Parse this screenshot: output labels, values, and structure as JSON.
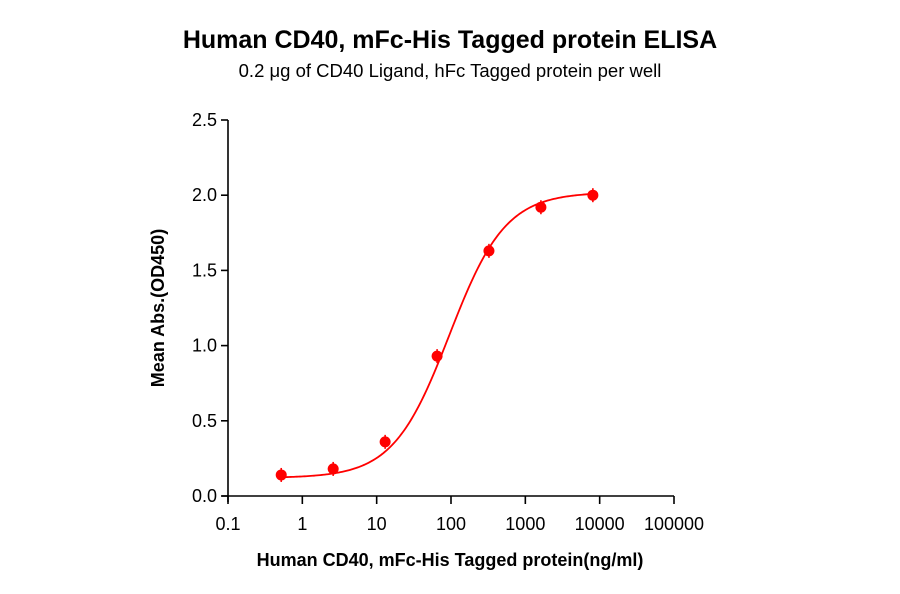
{
  "chart_data": {
    "type": "line",
    "title": "Human CD40, mFc-His Tagged protein ELISA",
    "subtitle": "0.2 μg of CD40 Ligand, hFc Tagged protein per well",
    "xlabel": "Human CD40, mFc-His Tagged protein(ng/ml)",
    "ylabel": "Mean Abs.(OD450)",
    "xscale": "log",
    "xlim": [
      0.1,
      100000
    ],
    "ylim": [
      0,
      2.5
    ],
    "xticks": [
      "0.1",
      "1",
      "10",
      "100",
      "1000",
      "10000",
      "100000"
    ],
    "yticks": [
      "0.0",
      "0.5",
      "1.0",
      "1.5",
      "2.0",
      "2.5"
    ],
    "grid": false,
    "legend": null,
    "series": [
      {
        "name": "Human CD40, mFc-His Tagged protein",
        "color": "#ff0000",
        "fit": "4PL sigmoid",
        "x": [
          0.52,
          2.6,
          13,
          65,
          324,
          1620,
          8100
        ],
        "values": [
          0.14,
          0.18,
          0.36,
          0.93,
          1.63,
          1.92,
          2.0
        ]
      }
    ]
  }
}
